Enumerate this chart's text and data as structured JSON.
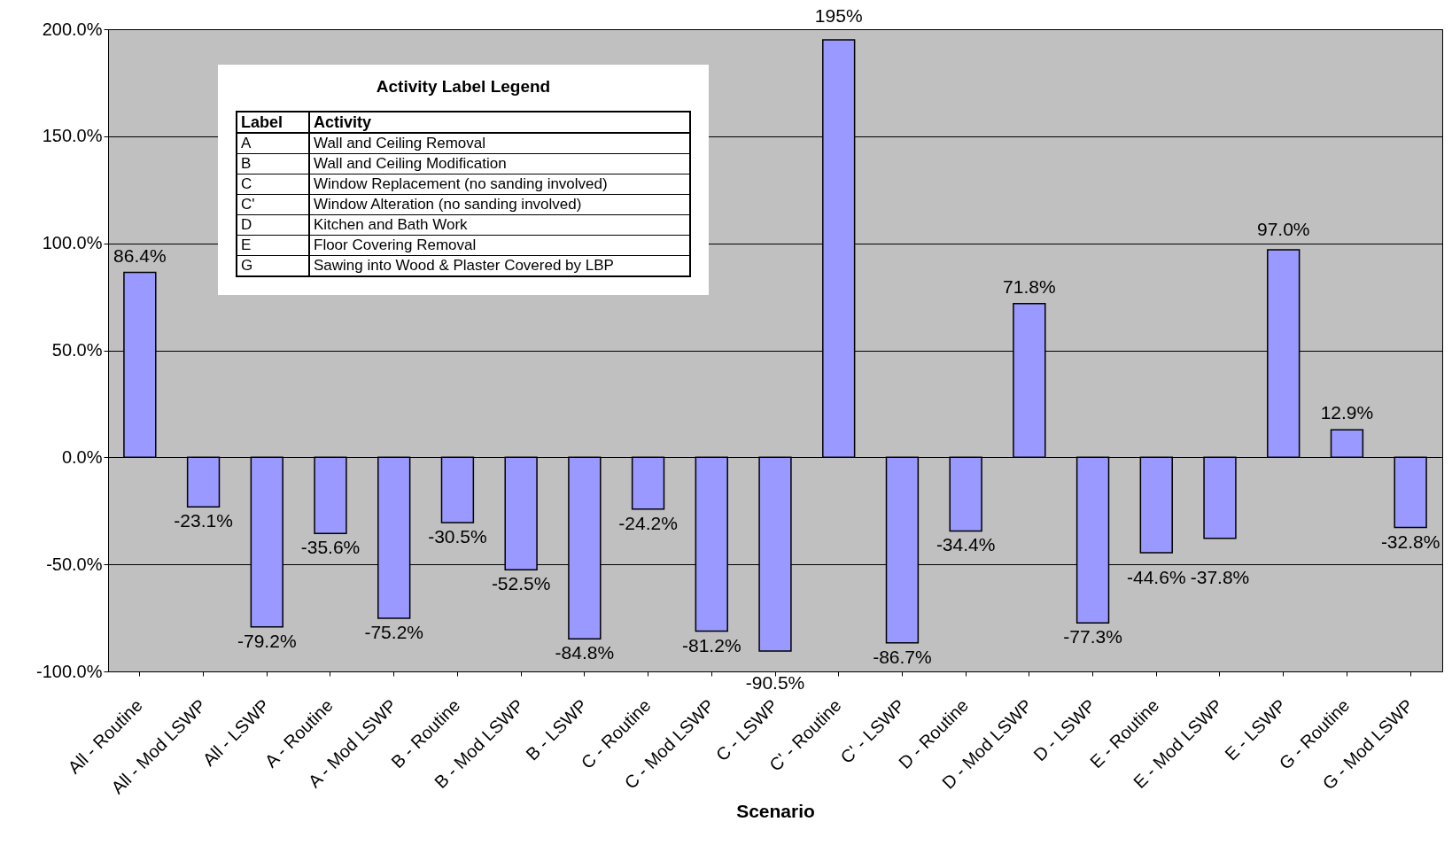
{
  "chart_data": {
    "type": "bar",
    "xlabel": "Scenario",
    "categories": [
      "All - Routine",
      "All - Mod LSWP",
      "All - LSWP",
      "A - Routine",
      "A - Mod LSWP",
      "B - Routine",
      "B - Mod LSWP",
      "B - LSWP",
      "C - Routine",
      "C - Mod LSWP",
      "C - LSWP",
      "C' - Routine",
      "C' - LSWP",
      "D - Routine",
      "D - Mod LSWP",
      "D - LSWP",
      "E - Routine",
      "E - Mod LSWP",
      "E - LSWP",
      "G - Routine",
      "G - Mod LSWP"
    ],
    "values": [
      86.4,
      -23.1,
      -79.2,
      -35.6,
      -75.2,
      -30.5,
      -52.5,
      -84.8,
      -24.2,
      -81.2,
      -90.5,
      195,
      -86.7,
      -34.4,
      71.8,
      -77.3,
      -44.6,
      -37.8,
      97.0,
      12.9,
      -32.8
    ],
    "value_labels": [
      "86.4%",
      "-23.1%",
      "-79.2%",
      "-35.6%",
      "-75.2%",
      "-30.5%",
      "-52.5%",
      "-84.8%",
      "-24.2%",
      "-81.2%",
      "-90.5%",
      "195%",
      "-86.7%",
      "-34.4%",
      "71.8%",
      "-77.3%",
      "-44.6%",
      "-37.8%",
      "97.0%",
      "12.9%",
      "-32.8%"
    ],
    "color": "#9999ff",
    "ylim": [
      -100,
      200
    ],
    "yticks": [
      {
        "value": -100,
        "label": "-100.0%"
      },
      {
        "value": -50,
        "label": "-50.0%"
      },
      {
        "value": 0,
        "label": "0.0%"
      },
      {
        "value": 50,
        "label": "50.0%"
      },
      {
        "value": 100,
        "label": "100.0%"
      },
      {
        "value": 150,
        "label": "150.0%"
      },
      {
        "value": 200,
        "label": "200.0%"
      }
    ],
    "grid": "y",
    "annotations": [
      "Activity Label Legend",
      "Label",
      "Activity",
      "A",
      "Wall and Ceiling Removal",
      "B",
      "Wall and Ceiling Modification",
      "C",
      "Window Replacement (no sanding involved)",
      "C'",
      "Window Alteration (no sanding involved)",
      "D",
      "Kitchen and Bath Work",
      "E",
      "Floor Covering Removal",
      "G",
      "Sawing into Wood & Plaster Covered by LBP"
    ]
  }
}
